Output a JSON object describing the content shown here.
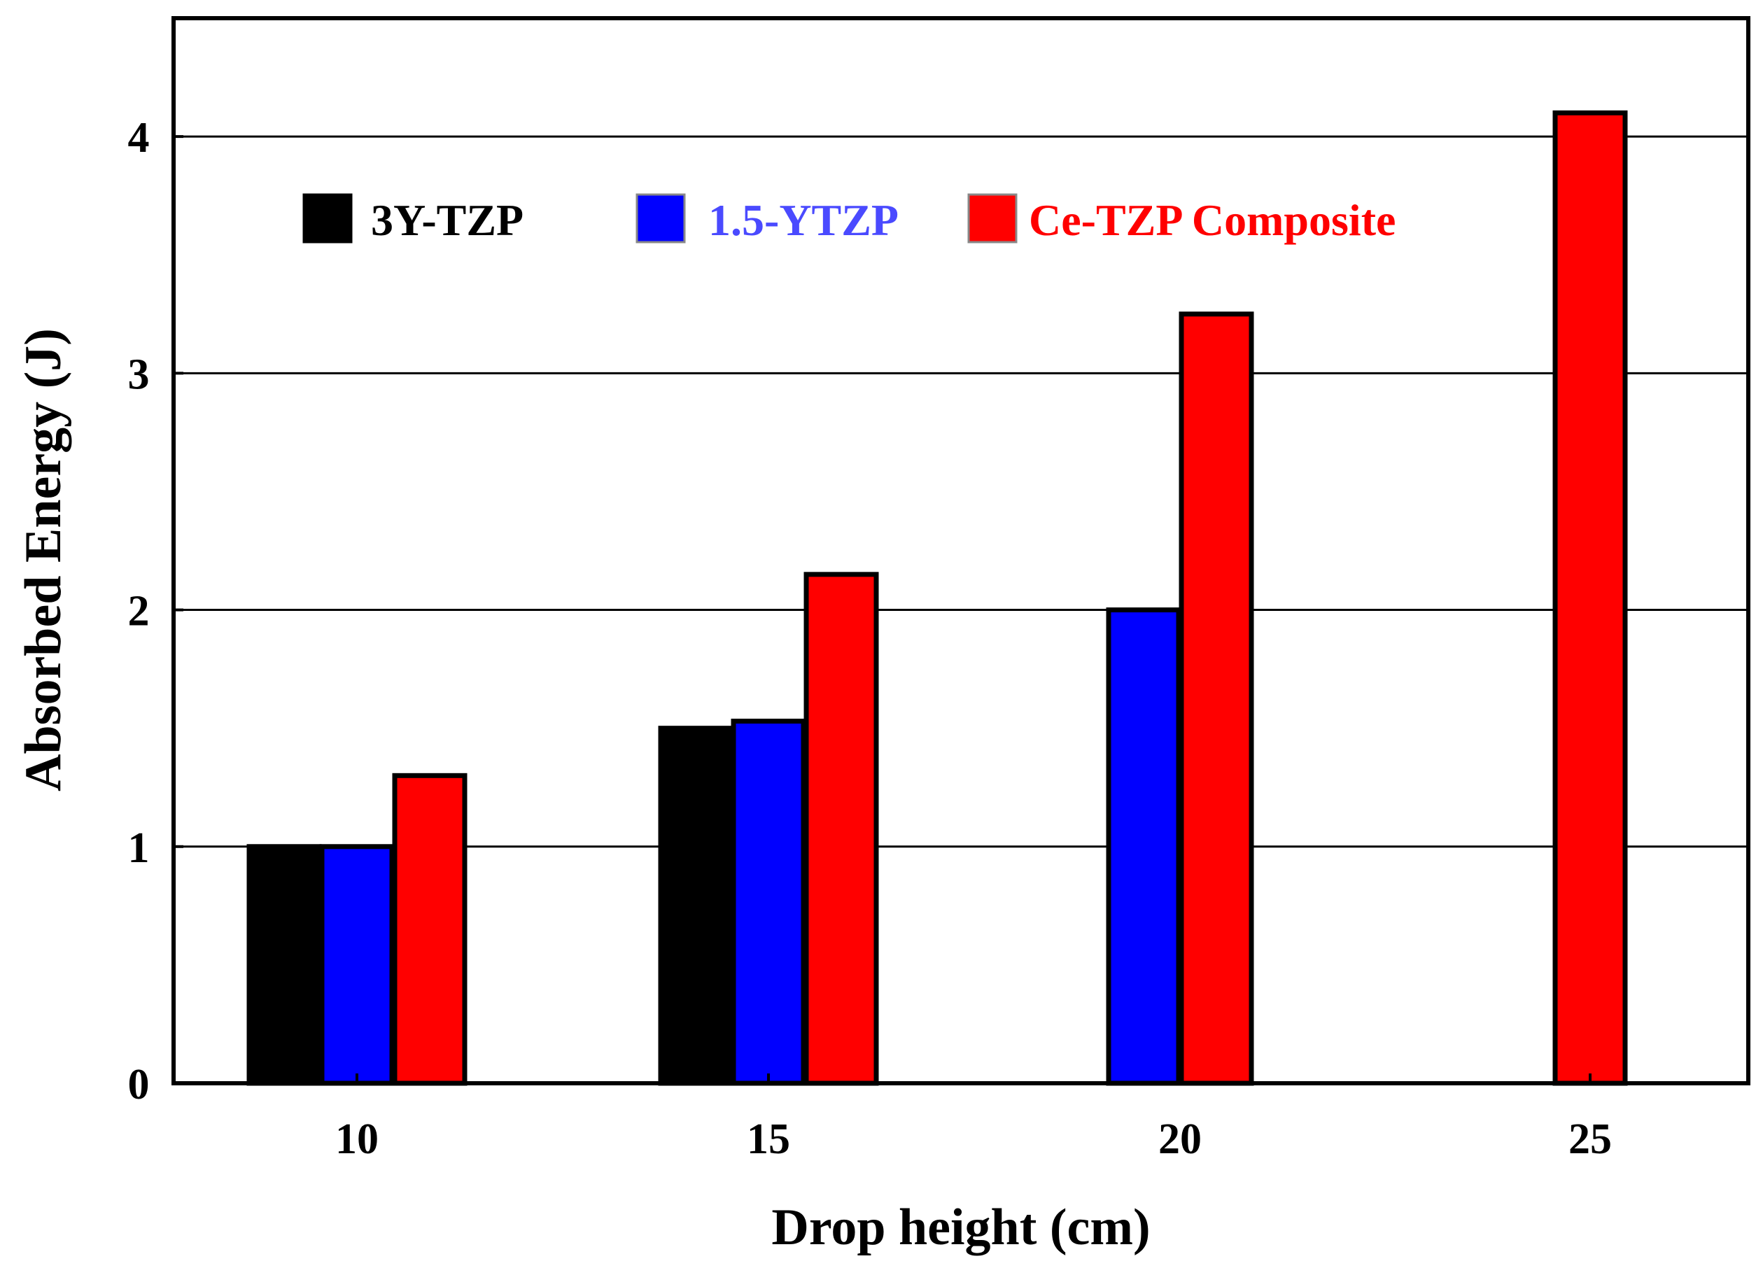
{
  "chart_data": {
    "type": "bar",
    "title": "",
    "xlabel": "Drop height (cm)",
    "ylabel": "Absorbed Energy (J)",
    "categories": [
      "10",
      "15",
      "20",
      "25"
    ],
    "ylim": [
      0,
      4.5
    ],
    "yticks": [
      "0",
      "1",
      "2",
      "3",
      "4"
    ],
    "grid": true,
    "legend_position": "top-left",
    "series": [
      {
        "name": "3Y-TZP",
        "color": "#000000",
        "text_color": "#000000",
        "values": [
          1.0,
          1.5,
          null,
          null
        ]
      },
      {
        "name": "1.5-YTZP",
        "color": "#0000ff",
        "text_color": "#4a4aff",
        "values": [
          1.0,
          1.53,
          2.0,
          null
        ]
      },
      {
        "name": "Ce-TZP Composite",
        "color": "#ff0000",
        "text_color": "#ff0000",
        "values": [
          1.3,
          2.15,
          3.25,
          4.1
        ]
      }
    ]
  }
}
